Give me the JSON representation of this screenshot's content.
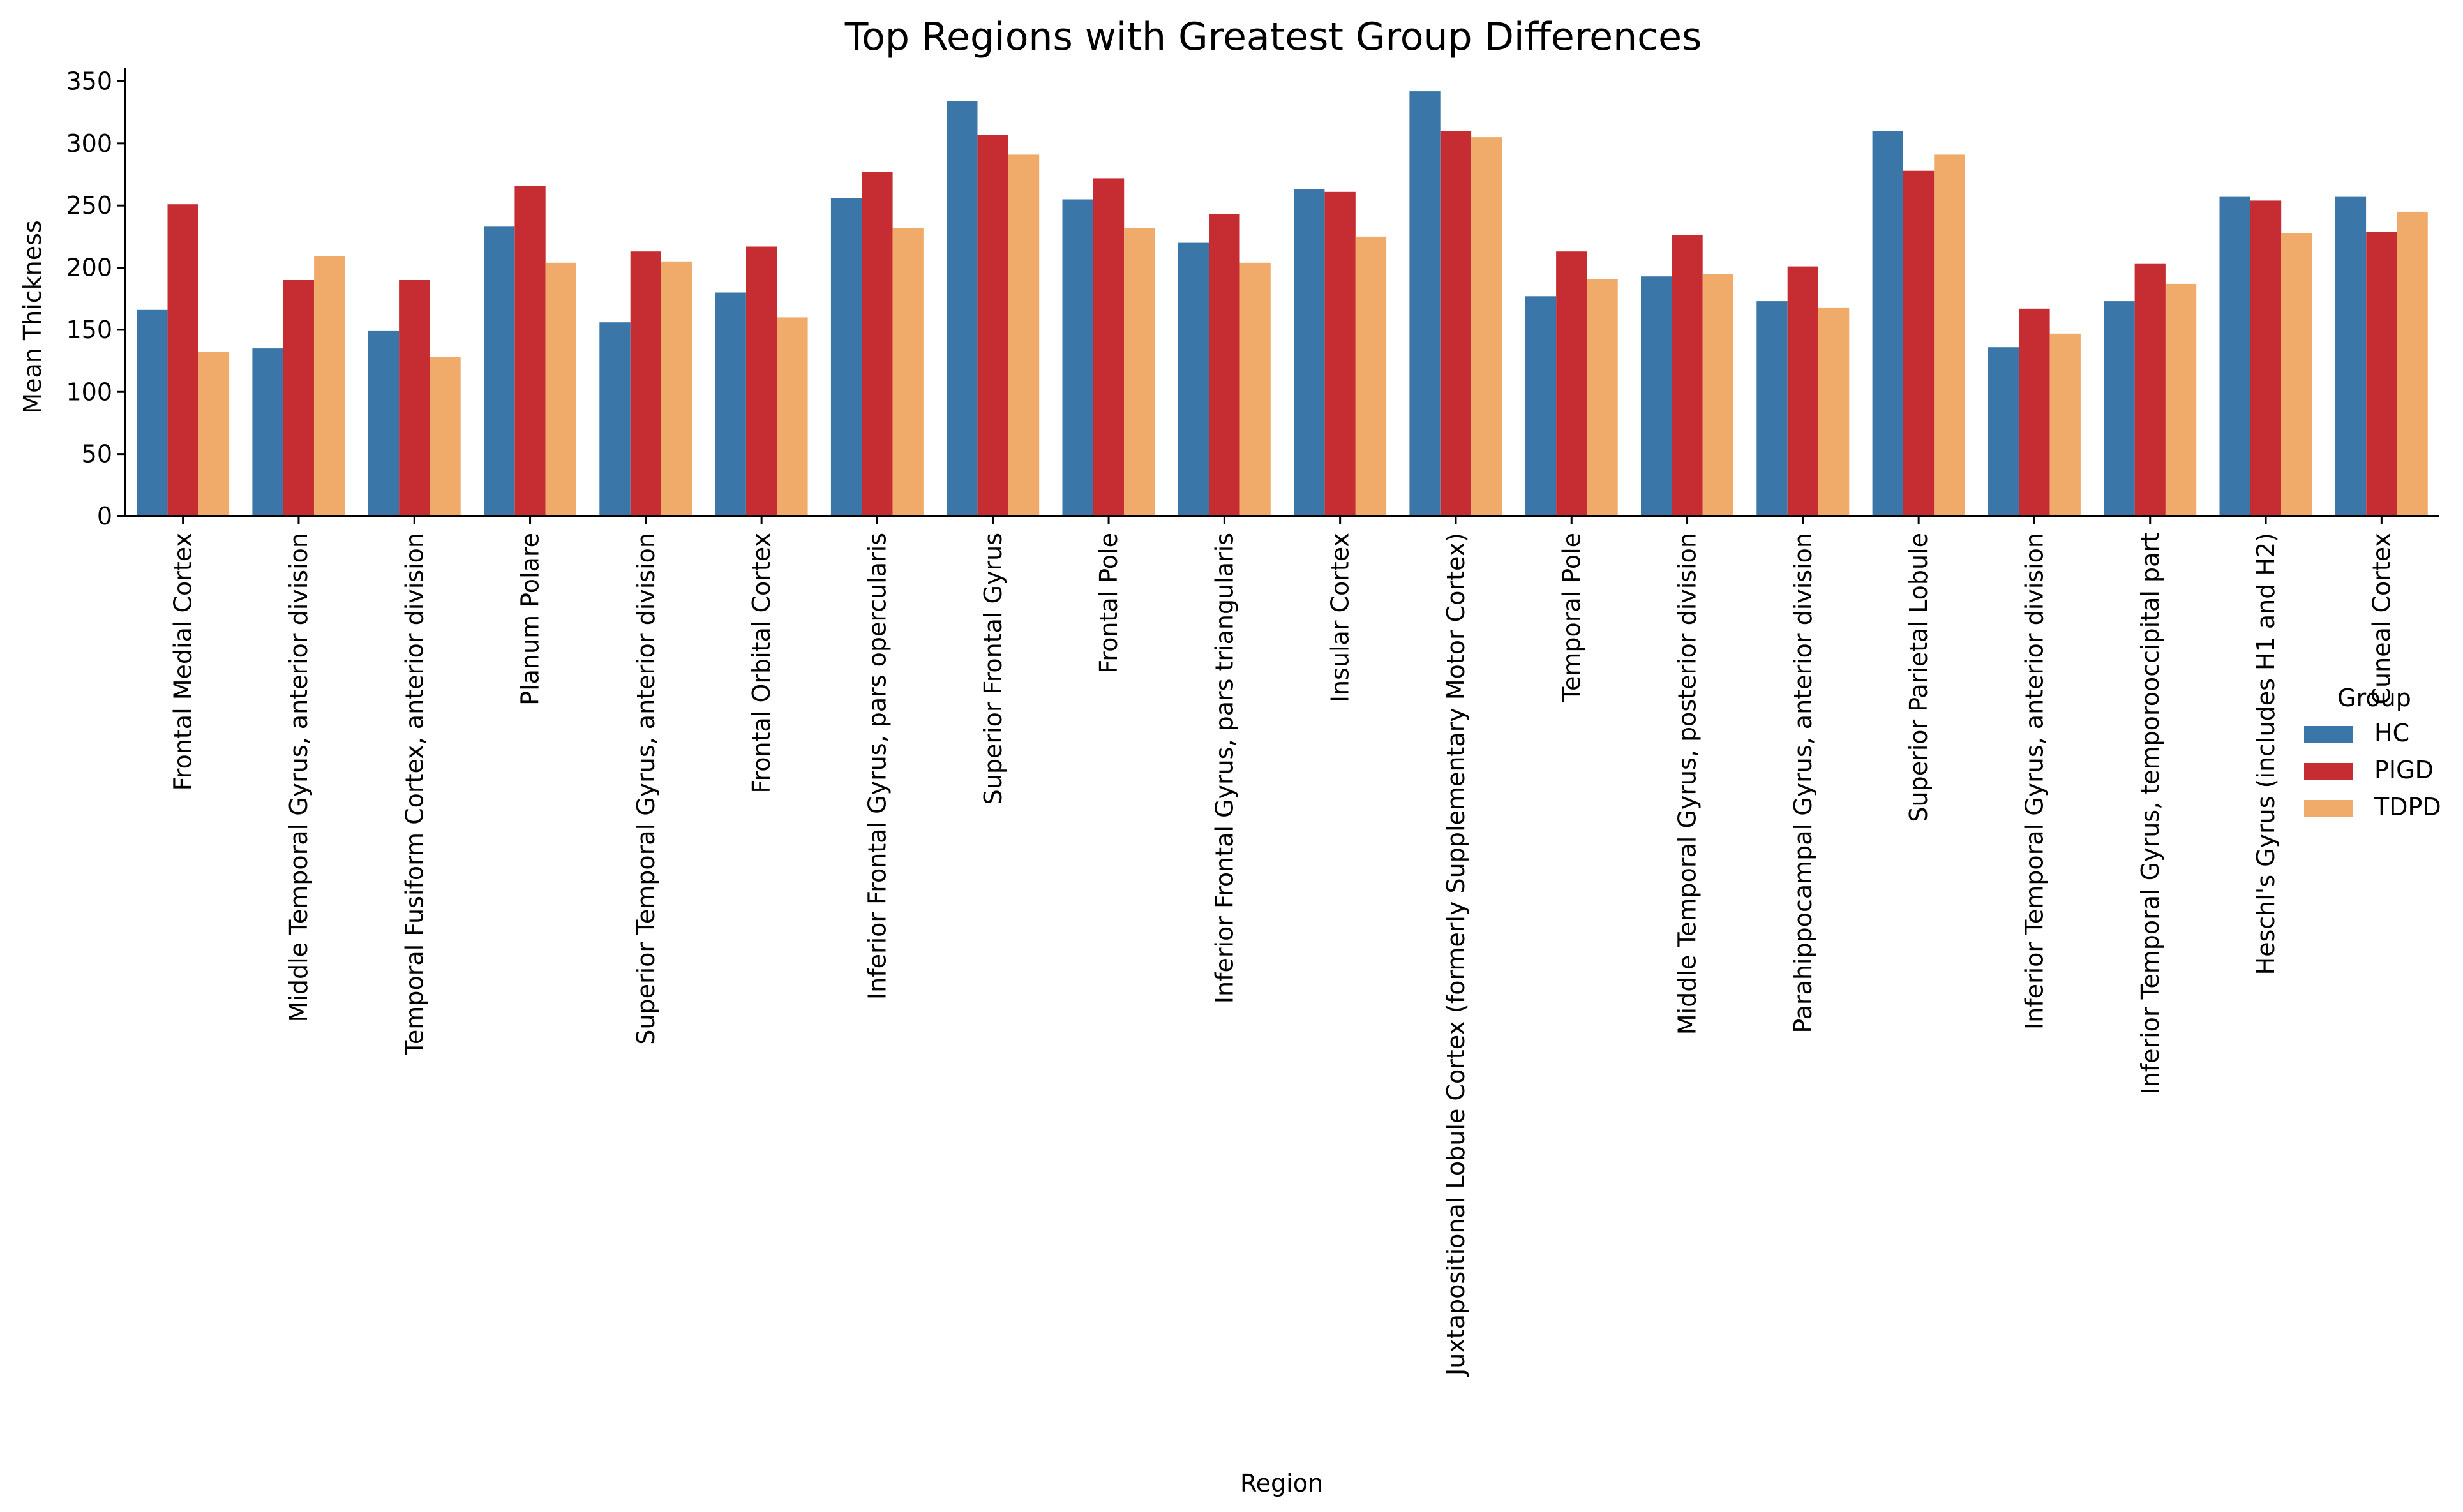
{
  "chart_data": {
    "type": "bar",
    "title": "Top Regions with Greatest Group Differences",
    "xlabel": "Region",
    "ylabel": "Mean Thickness",
    "ylim": [
      0,
      360
    ],
    "yticks": [
      0,
      50,
      100,
      150,
      200,
      250,
      300,
      350
    ],
    "grid": false,
    "legend": {
      "title": "Group",
      "placement": "right"
    },
    "categories": [
      "Frontal Medial Cortex",
      "Middle Temporal Gyrus, anterior division",
      "Temporal Fusiform Cortex, anterior division",
      "Planum Polare",
      "Superior Temporal Gyrus, anterior division",
      "Frontal Orbital Cortex",
      "Inferior Frontal Gyrus, pars opercularis",
      "Superior Frontal Gyrus",
      "Frontal Pole",
      "Inferior Frontal Gyrus, pars triangularis",
      "Insular Cortex",
      "Juxtapositional Lobule Cortex (formerly Supplementary Motor Cortex)",
      "Temporal Pole",
      "Middle Temporal Gyrus, posterior division",
      "Parahippocampal Gyrus, anterior division",
      "Superior Parietal Lobule",
      "Inferior Temporal Gyrus, anterior division",
      "Inferior Temporal Gyrus, temporooccipital part",
      "Heschl's Gyrus (includes H1 and H2)",
      "Cuneal Cortex"
    ],
    "series": [
      {
        "name": "HC",
        "color": "#3a76a8",
        "values": [
          166,
          135,
          149,
          233,
          156,
          180,
          256,
          334,
          255,
          220,
          263,
          342,
          177,
          193,
          173,
          310,
          136,
          173,
          257,
          257
        ]
      },
      {
        "name": "PIGD",
        "color": "#c62d32",
        "values": [
          251,
          190,
          190,
          266,
          213,
          217,
          277,
          307,
          272,
          243,
          261,
          310,
          213,
          226,
          201,
          278,
          167,
          203,
          254,
          229
        ]
      },
      {
        "name": "TDPD",
        "color": "#f0ab6a",
        "values": [
          132,
          209,
          128,
          204,
          205,
          160,
          232,
          291,
          232,
          204,
          225,
          305,
          191,
          195,
          168,
          291,
          147,
          187,
          228,
          245
        ]
      }
    ]
  }
}
